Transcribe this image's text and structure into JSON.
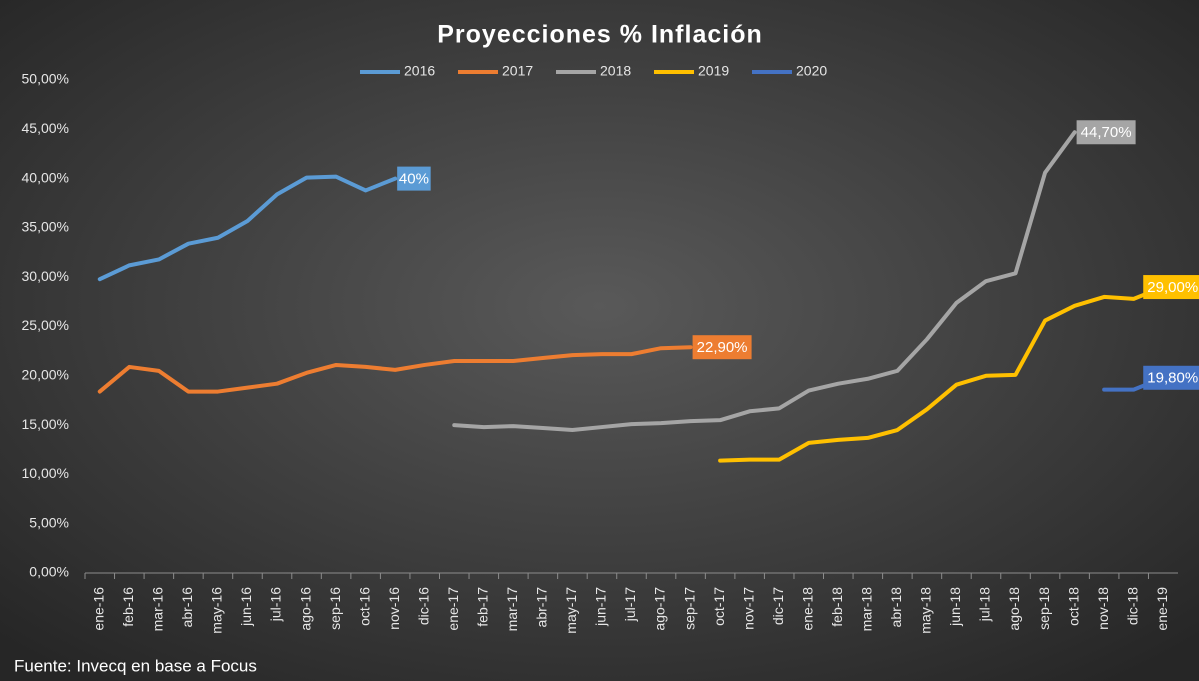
{
  "chart_data": {
    "type": "line",
    "title": "Proyecciones % Inflación",
    "source": "Fuente: Invecq en base a Focus",
    "categories": [
      "ene-16",
      "feb-16",
      "mar-16",
      "abr-16",
      "may-16",
      "jun-16",
      "jul-16",
      "ago-16",
      "sep-16",
      "oct-16",
      "nov-16",
      "dic-16",
      "ene-17",
      "feb-17",
      "mar-17",
      "abr-17",
      "may-17",
      "jun-17",
      "jul-17",
      "ago-17",
      "sep-17",
      "oct-17",
      "nov-17",
      "dic-17",
      "ene-18",
      "feb-18",
      "mar-18",
      "abr-18",
      "may-18",
      "jun-18",
      "jul-18",
      "ago-18",
      "sep-18",
      "oct-18",
      "nov-18",
      "dic-18",
      "ene-19"
    ],
    "series": [
      {
        "name": "2016",
        "color": "#5b9bd5",
        "values": [
          29.8,
          31.2,
          31.8,
          33.4,
          34.0,
          35.7,
          38.4,
          40.1,
          40.2,
          38.8,
          40,
          null,
          null,
          null,
          null,
          null,
          null,
          null,
          null,
          null,
          null,
          null,
          null,
          null,
          null,
          null,
          null,
          null,
          null,
          null,
          null,
          null,
          null,
          null,
          null,
          null,
          null
        ],
        "value_labels": [
          null,
          null,
          null,
          null,
          null,
          null,
          null,
          null,
          null,
          null,
          "40%",
          null,
          null,
          null,
          null,
          null,
          null,
          null,
          null,
          null,
          null,
          null,
          null,
          null,
          null,
          null,
          null,
          null,
          null,
          null,
          null,
          null,
          null,
          null,
          null,
          null,
          null
        ]
      },
      {
        "name": "2017",
        "color": "#ed7d31",
        "values": [
          18.4,
          20.9,
          20.5,
          18.4,
          18.4,
          18.8,
          19.2,
          20.3,
          21.1,
          20.9,
          20.6,
          21.1,
          21.5,
          21.5,
          21.5,
          21.8,
          22.1,
          22.2,
          22.2,
          22.8,
          22.9,
          null,
          null,
          null,
          null,
          null,
          null,
          null,
          null,
          null,
          null,
          null,
          null,
          null,
          null,
          null,
          null
        ],
        "value_labels": [
          null,
          null,
          null,
          null,
          null,
          null,
          null,
          null,
          null,
          null,
          null,
          null,
          null,
          null,
          null,
          null,
          null,
          null,
          null,
          null,
          "22,90%",
          null,
          null,
          null,
          null,
          null,
          null,
          null,
          null,
          null,
          null,
          null,
          null,
          null,
          null,
          null,
          null
        ]
      },
      {
        "name": "2018",
        "color": "#a5a5a5",
        "values": [
          null,
          null,
          null,
          null,
          null,
          null,
          null,
          null,
          null,
          null,
          null,
          null,
          15.0,
          14.8,
          14.9,
          14.7,
          14.5,
          14.8,
          15.1,
          15.2,
          15.4,
          15.5,
          16.4,
          16.7,
          18.5,
          19.2,
          19.7,
          20.5,
          23.7,
          27.4,
          29.6,
          30.4,
          40.6,
          44.7,
          null,
          null,
          null
        ],
        "value_labels": [
          null,
          null,
          null,
          null,
          null,
          null,
          null,
          null,
          null,
          null,
          null,
          null,
          null,
          null,
          null,
          null,
          null,
          null,
          null,
          null,
          null,
          null,
          null,
          null,
          null,
          null,
          null,
          null,
          null,
          null,
          null,
          null,
          null,
          "44,70%",
          null,
          null,
          null
        ]
      },
      {
        "name": "2019",
        "color": "#ffc000",
        "values": [
          null,
          null,
          null,
          null,
          null,
          null,
          null,
          null,
          null,
          null,
          null,
          null,
          null,
          null,
          null,
          null,
          null,
          null,
          null,
          null,
          null,
          11.4,
          11.5,
          11.5,
          13.2,
          13.5,
          13.7,
          14.5,
          16.6,
          19.1,
          20.0,
          20.1,
          25.6,
          27.1,
          28.0,
          27.8,
          29.0
        ],
        "value_labels": [
          null,
          null,
          null,
          null,
          null,
          null,
          null,
          null,
          null,
          null,
          null,
          null,
          null,
          null,
          null,
          null,
          null,
          null,
          null,
          null,
          null,
          null,
          null,
          null,
          null,
          null,
          null,
          null,
          null,
          null,
          null,
          null,
          null,
          null,
          null,
          null,
          "29,00%"
        ]
      },
      {
        "name": "2020",
        "color": "#4472c4",
        "values": [
          null,
          null,
          null,
          null,
          null,
          null,
          null,
          null,
          null,
          null,
          null,
          null,
          null,
          null,
          null,
          null,
          null,
          null,
          null,
          null,
          null,
          null,
          null,
          null,
          null,
          null,
          null,
          null,
          null,
          null,
          null,
          null,
          null,
          null,
          18.6,
          18.6,
          19.8
        ],
        "value_labels": [
          null,
          null,
          null,
          null,
          null,
          null,
          null,
          null,
          null,
          null,
          null,
          null,
          null,
          null,
          null,
          null,
          null,
          null,
          null,
          null,
          null,
          null,
          null,
          null,
          null,
          null,
          null,
          null,
          null,
          null,
          null,
          null,
          null,
          null,
          null,
          null,
          "19,80%"
        ]
      }
    ],
    "ylim": [
      0,
      50
    ],
    "yticks": [
      {
        "value": 0,
        "label": "0,00%"
      },
      {
        "value": 5,
        "label": "5,00%"
      },
      {
        "value": 10,
        "label": "10,00%"
      },
      {
        "value": 15,
        "label": "15,00%"
      },
      {
        "value": 20,
        "label": "20,00%"
      },
      {
        "value": 25,
        "label": "25,00%"
      },
      {
        "value": 30,
        "label": "30,00%"
      },
      {
        "value": 35,
        "label": "35,00%"
      },
      {
        "value": 40,
        "label": "40,00%"
      },
      {
        "value": 45,
        "label": "45,00%"
      },
      {
        "value": 50,
        "label": "50,00%"
      }
    ],
    "grid": false,
    "legend": "top"
  }
}
